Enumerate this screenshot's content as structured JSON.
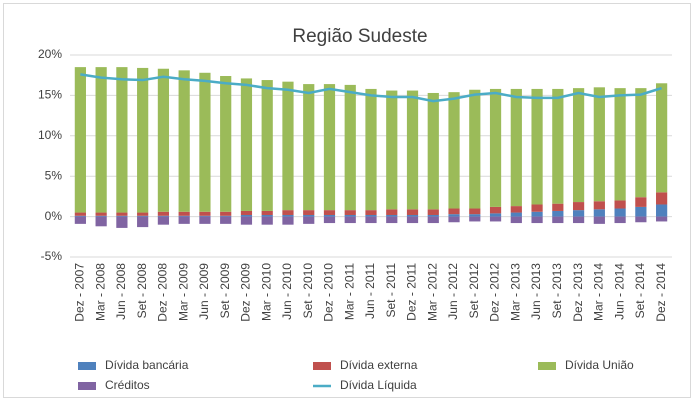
{
  "chart_data": {
    "type": "bar",
    "stacked": true,
    "title": "Região Sudeste",
    "categories": [
      "Dez - 2007",
      "Mar - 2008",
      "Jun - 2008",
      "Set - 2008",
      "Dez - 2008",
      "Mar - 2009",
      "Jun - 2009",
      "Set - 2009",
      "Dez - 2009",
      "Mar - 2010",
      "Jun - 2010",
      "Set - 2010",
      "Dez - 2010",
      "Mar - 2011",
      "Jun - 2011",
      "Set - 2011",
      "Dez - 2011",
      "Mar - 2012",
      "Jun - 2012",
      "Set - 2012",
      "Dez - 2012",
      "Mar - 2013",
      "Jun - 2013",
      "Set - 2013",
      "Dez - 2013",
      "Mar - 2014",
      "Jun - 2014",
      "Set - 2014",
      "Dez - 2014"
    ],
    "series": [
      {
        "name": "Dívida bancária",
        "color": "#4f81bd",
        "type": "bar",
        "values": [
          0.1,
          0.1,
          0.1,
          0.1,
          0.1,
          0.1,
          0.1,
          0.1,
          0.2,
          0.2,
          0.2,
          0.2,
          0.2,
          0.2,
          0.2,
          0.2,
          0.2,
          0.2,
          0.3,
          0.3,
          0.4,
          0.5,
          0.6,
          0.7,
          0.8,
          0.9,
          1.0,
          1.2,
          1.5
        ]
      },
      {
        "name": "Dívida externa",
        "color": "#c0504d",
        "type": "bar",
        "values": [
          0.4,
          0.4,
          0.4,
          0.4,
          0.5,
          0.5,
          0.5,
          0.5,
          0.5,
          0.5,
          0.6,
          0.6,
          0.6,
          0.6,
          0.6,
          0.7,
          0.7,
          0.7,
          0.7,
          0.7,
          0.8,
          0.8,
          0.9,
          0.9,
          1.0,
          1.0,
          1.0,
          1.2,
          1.5
        ]
      },
      {
        "name": "Dívida União",
        "color": "#9bbb59",
        "type": "bar",
        "values": [
          18.0,
          18.0,
          18.0,
          17.9,
          17.7,
          17.5,
          17.2,
          16.8,
          16.4,
          16.2,
          15.9,
          15.6,
          15.6,
          15.5,
          15.0,
          14.7,
          14.7,
          14.4,
          14.4,
          14.7,
          14.6,
          14.5,
          14.3,
          14.2,
          14.1,
          14.1,
          13.9,
          13.5,
          13.5
        ]
      },
      {
        "name": "Créditos",
        "color": "#8064a2",
        "type": "bar",
        "values": [
          -0.9,
          -1.2,
          -1.4,
          -1.3,
          -1.0,
          -0.9,
          -0.9,
          -0.9,
          -1.0,
          -1.0,
          -1.0,
          -0.9,
          -0.8,
          -0.8,
          -0.8,
          -0.8,
          -0.8,
          -0.8,
          -0.7,
          -0.6,
          -0.6,
          -0.8,
          -0.8,
          -0.8,
          -0.8,
          -0.9,
          -0.8,
          -0.7,
          -0.6
        ]
      },
      {
        "name": "Dívida Líquida",
        "color": "#4bacc6",
        "type": "line",
        "values": [
          17.6,
          17.2,
          17.0,
          16.9,
          17.3,
          17.0,
          16.8,
          16.5,
          16.3,
          15.9,
          15.7,
          15.3,
          15.8,
          15.4,
          15.0,
          14.8,
          14.8,
          14.3,
          14.6,
          15.1,
          15.3,
          14.8,
          14.7,
          14.7,
          15.3,
          14.8,
          15.0,
          15.1,
          15.9
        ]
      }
    ],
    "ylim": [
      -5,
      20
    ],
    "yticks": [
      {
        "value": -5,
        "label": "-5%"
      },
      {
        "value": 0,
        "label": "0%"
      },
      {
        "value": 5,
        "label": "5%"
      },
      {
        "value": 10,
        "label": "10%"
      },
      {
        "value": 15,
        "label": "15%"
      },
      {
        "value": 20,
        "label": "20%"
      }
    ],
    "grid": true,
    "legend": "bottom"
  }
}
